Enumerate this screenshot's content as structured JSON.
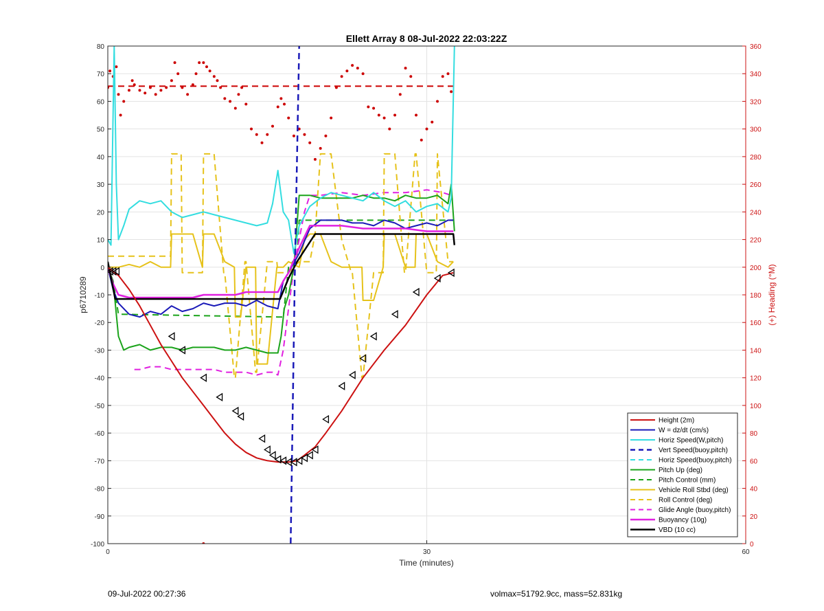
{
  "footer": {
    "left_text": "09-Jul-2022 00:27:36",
    "right_text": "volmax=51792.9cc, mass=52.831kg"
  },
  "chart_data": {
    "type": "line",
    "title": "Ellett Array 8 08-Jul-2022 22:03:22Z",
    "xlabel": "Time (minutes)",
    "ylabel": "p6710289",
    "y2label": "(+) Heading (°M)",
    "xlim": [
      0,
      60
    ],
    "ylim": [
      -100,
      80
    ],
    "y2lim": [
      0,
      360
    ],
    "xticks": [
      0,
      30,
      60
    ],
    "yticks": [
      80,
      70,
      60,
      50,
      40,
      30,
      20,
      10,
      0,
      -10,
      -20,
      -30,
      -40,
      -50,
      -60,
      -70,
      -80,
      -90,
      -100
    ],
    "y2ticks": [
      360,
      340,
      320,
      300,
      280,
      260,
      240,
      220,
      200,
      180,
      160,
      140,
      120,
      100,
      80,
      60,
      40,
      20,
      0
    ],
    "grid": true,
    "legend_position": "bottom-right",
    "colors": {
      "red": "#cc1111",
      "blue": "#1a1ab8",
      "cyan": "#33dde0",
      "green": "#1aa31a",
      "yellow": "#e6c21a",
      "magenta": "#e020e0",
      "black": "#000000",
      "dark_red": "#cc0000"
    },
    "series": [
      {
        "name": "Height (2m)",
        "color": "red",
        "dash": false,
        "width": 2,
        "x": [
          0,
          1,
          2,
          3,
          4,
          5,
          6,
          7,
          8,
          9,
          10,
          11,
          12,
          13,
          14,
          15,
          16,
          17,
          17.8,
          18.5,
          19.5,
          20.5,
          22,
          24,
          26,
          28,
          30,
          31.5,
          32.5
        ],
        "y": [
          0,
          -3,
          -8,
          -14,
          -21,
          -28,
          -34,
          -40,
          -45,
          -50,
          -55,
          -60,
          -64,
          -67,
          -69,
          -70,
          -70.5,
          -70.5,
          -70,
          -68,
          -65,
          -60,
          -52,
          -40,
          -30,
          -21,
          -10,
          -3,
          -2
        ],
        "markers": {
          "symbol": "triangle",
          "x": [
            0.2,
            0.5,
            0.8,
            6,
            7,
            9,
            10.5,
            12,
            12.5,
            14.5,
            15,
            15.5,
            16,
            16.5,
            17,
            17.5,
            18,
            18.5,
            19,
            19.5,
            20.5,
            22,
            23,
            24,
            25,
            27,
            29,
            31,
            32.3
          ],
          "y": [
            -1.5,
            -1.5,
            -1.5,
            -25,
            -30,
            -40,
            -47,
            -52,
            -54,
            -62,
            -66,
            -68,
            -69.5,
            -70,
            -70.5,
            -70.5,
            -70,
            -69,
            -68,
            -66,
            -55,
            -43,
            -39,
            -33,
            -25,
            -17,
            -9,
            -4,
            -2
          ]
        }
      },
      {
        "name": "W = dz/dt (cm/s)",
        "color": "blue",
        "dash": false,
        "width": 2,
        "x": [
          0,
          0.5,
          1,
          2,
          3,
          4,
          5,
          6,
          7,
          8,
          9,
          10,
          11,
          12,
          13,
          14,
          15,
          16,
          16.5,
          17,
          18,
          19,
          20,
          21,
          22,
          23,
          24,
          25,
          26,
          27,
          28,
          29,
          30,
          31,
          32,
          32.5
        ],
        "y": [
          0,
          -8,
          -13,
          -17,
          -18,
          -16,
          -17,
          -14,
          -16,
          -15,
          -13,
          -14,
          -13,
          -13,
          -14,
          -12,
          -14,
          -15,
          -5,
          -2,
          5,
          14,
          17,
          17,
          17,
          16,
          16,
          15,
          17,
          16,
          14,
          15,
          16,
          15,
          17,
          17
        ]
      },
      {
        "name": "Horiz Speed(W,pitch)",
        "color": "cyan",
        "dash": false,
        "width": 2,
        "x": [
          0,
          0.3,
          0.6,
          0.8,
          1,
          1.5,
          2,
          3,
          4,
          5,
          6,
          7,
          8,
          9,
          10,
          11,
          12,
          13,
          14,
          15,
          15.5,
          16,
          16.5,
          17,
          17.5,
          18,
          19,
          20,
          21,
          22,
          23,
          24,
          25,
          26,
          27,
          28,
          29,
          30,
          31,
          32,
          32.3,
          32.6
        ],
        "y": [
          10,
          8,
          80,
          30,
          10,
          15,
          21,
          24,
          23,
          24,
          20,
          18,
          19,
          20,
          19,
          18,
          17,
          16,
          15,
          16,
          23,
          35,
          20,
          17,
          5,
          15,
          22,
          25,
          27,
          26,
          25,
          24,
          27,
          24,
          22,
          24,
          20,
          22,
          23,
          20,
          25,
          80
        ]
      },
      {
        "name": "Vert Speed(buoy,pitch)",
        "color": "blue",
        "dash": true,
        "width": 2.5,
        "x": [
          17.2,
          17.4,
          17.6,
          17.8,
          18
        ],
        "y": [
          -100,
          -50,
          0,
          40,
          80
        ]
      },
      {
        "name": "Horiz Speed(buoy,pitch)",
        "color": "cyan",
        "dash": true,
        "width": 2,
        "x": [],
        "y": []
      },
      {
        "name": "Pitch Up (deg)",
        "color": "green",
        "dash": false,
        "width": 2,
        "x": [
          0,
          0.5,
          1,
          1.5,
          2,
          3,
          4,
          5,
          6,
          7,
          8,
          9,
          10,
          11,
          12,
          13,
          14,
          15,
          16,
          16.3,
          16.6,
          17,
          17.5,
          18,
          19,
          20,
          21,
          22,
          23,
          24,
          25,
          26,
          27,
          28,
          29,
          30,
          31,
          32,
          32.3,
          32.6
        ],
        "y": [
          0,
          -5,
          -25,
          -30,
          -29,
          -28,
          -30,
          -29,
          -29,
          -30,
          -29,
          -29,
          -29,
          -30,
          -30,
          -29,
          -30,
          -31,
          -31,
          -25,
          -15,
          -10,
          0,
          26,
          26,
          25,
          25,
          25,
          25,
          26,
          25,
          25,
          24,
          26,
          25,
          25,
          26,
          23,
          30,
          13
        ]
      },
      {
        "name": "Pitch Control (mm)",
        "color": "green",
        "dash": true,
        "width": 2,
        "x": [
          0,
          0.5,
          1,
          16,
          16.5,
          17,
          17.8,
          18,
          32.5
        ],
        "y": [
          0,
          -5,
          -17,
          -18,
          -18,
          0,
          4,
          17,
          17
        ]
      },
      {
        "name": "Vehicle Roll Stbd (deg)",
        "color": "yellow",
        "dash": false,
        "width": 2,
        "x": [
          0,
          1,
          2,
          3,
          4,
          5,
          5.9,
          6,
          7,
          8,
          8.9,
          9,
          10,
          11,
          11.9,
          12,
          12.5,
          13,
          13.9,
          14,
          15,
          15.9,
          16,
          16.5,
          17,
          18,
          18.5,
          19,
          19.5,
          20,
          21,
          22,
          23,
          23.9,
          24,
          25,
          25.9,
          26,
          27,
          28,
          28.9,
          29,
          30,
          31,
          32,
          32.5
        ],
        "y": [
          0,
          0,
          1,
          0,
          2,
          0,
          0,
          12,
          12,
          12,
          0,
          12,
          12,
          2,
          0,
          -18,
          -18,
          0,
          0,
          -35,
          -35,
          0,
          0,
          0,
          2,
          0,
          10,
          12,
          12,
          12,
          2,
          0,
          0,
          0,
          -12,
          -12,
          0,
          12,
          12,
          0,
          0,
          12,
          12,
          2,
          0,
          2
        ]
      },
      {
        "name": "Roll Control (deg)",
        "color": "yellow",
        "dash": true,
        "width": 2,
        "x": [
          0,
          2,
          4,
          5.9,
          6,
          6.9,
          7,
          8.9,
          9,
          10,
          10.9,
          11,
          11.9,
          12,
          12.9,
          13,
          13.9,
          14,
          15,
          15.9,
          16,
          17,
          18,
          19,
          19.5,
          20,
          21,
          22,
          22.9,
          23,
          23.9,
          24,
          25,
          25.9,
          26,
          27,
          27.9,
          28,
          28.9,
          29,
          30,
          30.9,
          31,
          32,
          32.5
        ],
        "y": [
          4,
          4,
          4,
          4,
          41,
          41,
          -2,
          -2,
          41,
          41,
          -2,
          -2,
          -40,
          -40,
          2,
          2,
          -38,
          -38,
          2,
          2,
          -2,
          -2,
          2,
          2,
          12,
          41,
          41,
          10,
          -2,
          -2,
          -40,
          -40,
          -2,
          -2,
          41,
          41,
          -2,
          -2,
          41,
          41,
          -2,
          -2,
          41,
          2,
          2
        ]
      },
      {
        "name": "Glide Angle (buoy,pitch)",
        "color": "magenta",
        "dash": true,
        "width": 2,
        "x": [
          2.5,
          3,
          4,
          5,
          6,
          7,
          8,
          9,
          10,
          11,
          12,
          13,
          14,
          15,
          15.5,
          16,
          16.5,
          17,
          17.5,
          18,
          18.5,
          19,
          20,
          22,
          24,
          26,
          28,
          30,
          31.5,
          32.3
        ],
        "y": [
          -37,
          -37,
          -36,
          -36,
          -37,
          -37,
          -37,
          -37,
          -37,
          -38,
          -38,
          -38,
          -39,
          -38,
          -38,
          -39,
          -30,
          -15,
          0,
          10,
          20,
          26,
          26,
          27,
          26,
          27,
          27,
          28,
          27,
          26
        ]
      },
      {
        "name": "Buoyancy (10g)",
        "color": "magenta",
        "dash": false,
        "width": 2.5,
        "x": [
          0,
          0.5,
          1,
          2,
          3,
          4,
          5,
          6,
          7,
          8,
          9,
          10,
          11,
          12,
          13,
          14,
          15,
          16,
          16.5,
          17,
          18,
          19,
          20,
          22,
          24,
          26,
          28,
          30,
          32.5
        ],
        "y": [
          0,
          -6,
          -10,
          -11,
          -11,
          -11,
          -11,
          -11,
          -11,
          -11,
          -10,
          -10,
          -10,
          -10,
          -9,
          -9,
          -9,
          -9,
          -5,
          -2,
          7,
          15,
          15,
          15,
          14,
          14,
          14,
          13,
          13
        ]
      },
      {
        "name": "VBD (10 cc)",
        "color": "black",
        "dash": false,
        "width": 2.5,
        "x": [
          0,
          0.7,
          16.2,
          17,
          17.8,
          19.5,
          32.5,
          32.6
        ],
        "y": [
          2,
          -11.5,
          -11.5,
          -4,
          2,
          12,
          12,
          8
        ]
      }
    ],
    "heading_series": {
      "color": "dark_red",
      "dash": false,
      "axis": "right",
      "x": [
        0,
        0.2,
        0.5,
        0.8,
        1,
        1.2,
        1.5,
        2,
        2.3,
        2.5,
        3,
        3.5,
        4,
        4.5,
        5,
        5.5,
        6,
        6.3,
        6.6,
        7,
        7.5,
        8,
        8.3,
        8.6,
        9,
        9.3,
        9.6,
        10,
        10.3,
        10.6,
        11,
        11.5,
        12,
        12.3,
        12.6,
        13,
        13.5,
        14,
        14.5,
        15,
        15.5,
        16,
        16.3,
        16.6,
        17,
        17.5,
        18,
        18.5,
        19,
        19.5,
        20,
        20.5,
        21,
        21.5,
        22,
        22.5,
        23,
        23.5,
        24,
        24.5,
        25,
        25.5,
        26,
        26.5,
        27,
        27.5,
        28,
        28.5,
        29,
        29.5,
        30,
        30.5,
        31,
        31.5,
        32,
        32.3
      ],
      "y": [
        330,
        342,
        338,
        345,
        325,
        310,
        320,
        328,
        335,
        332,
        328,
        326,
        330,
        325,
        328,
        330,
        335,
        348,
        340,
        330,
        325,
        332,
        340,
        348,
        348,
        345,
        342,
        338,
        335,
        330,
        322,
        320,
        315,
        325,
        330,
        318,
        300,
        296,
        290,
        296,
        302,
        316,
        322,
        318,
        308,
        295,
        300,
        296,
        290,
        278,
        286,
        295,
        308,
        330,
        338,
        342,
        346,
        344,
        340,
        316,
        315,
        310,
        308,
        300,
        310,
        325,
        344,
        338,
        310,
        292,
        300,
        305,
        320,
        338,
        340,
        327
      ],
      "markers": {
        "symbol": "dot"
      }
    },
    "heading_target": {
      "value": 331,
      "color": "dark_red",
      "dash": true,
      "axis": "right",
      "x_range": [
        0,
        32.6
      ]
    },
    "stray_point": {
      "x": 9,
      "y": 0,
      "color": "dark_red",
      "axis": "right"
    }
  }
}
